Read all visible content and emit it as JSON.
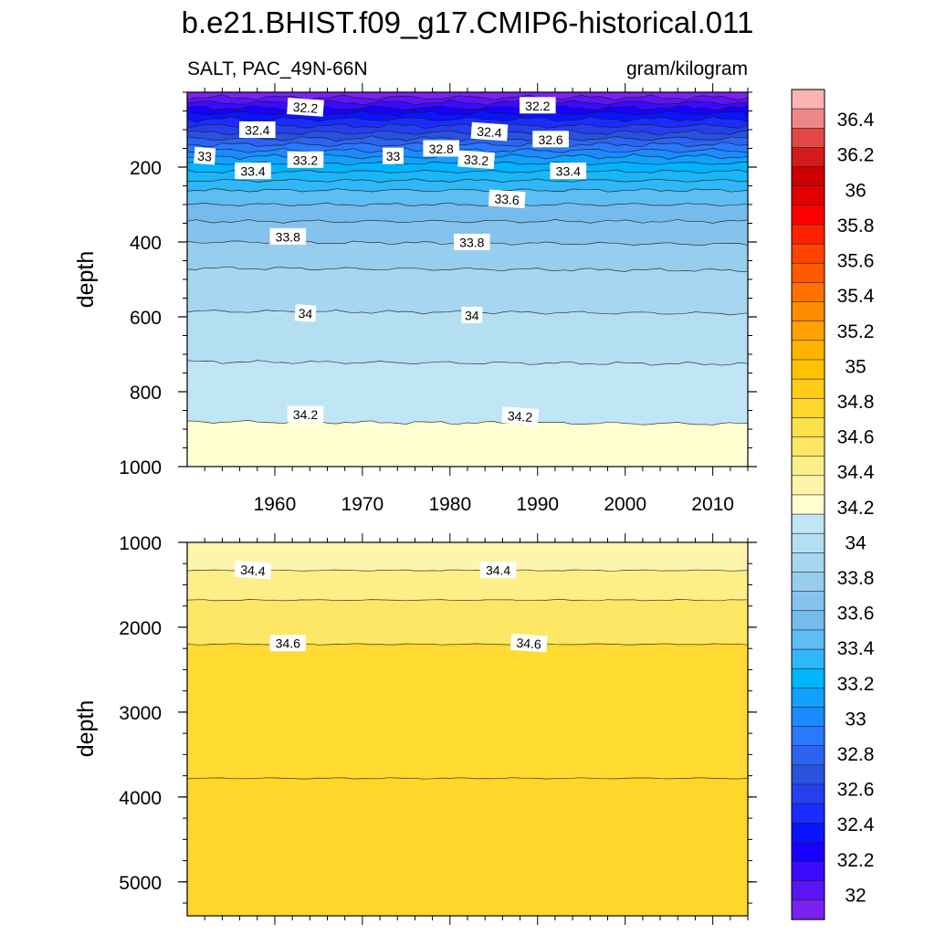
{
  "chart_data": {
    "type": "contour",
    "title": "b.e21.BHIST.f09_g17.CMIP6-historical.011",
    "left_subtitle": "SALT, PAC_49N-66N",
    "right_subtitle": "gram/kilogram",
    "xlim": [
      1950,
      2014
    ],
    "x_ticks": [
      "1960",
      "1970",
      "1980",
      "1990",
      "2000",
      "2010"
    ],
    "panels": [
      {
        "name": "upper",
        "ylabel": "depth",
        "ylim": [
          0,
          1000
        ],
        "y_ticks": [
          "200",
          "400",
          "600",
          "800",
          "1000"
        ],
        "contour_labels": [
          {
            "text": "32.2",
            "year": 1963.5,
            "depth": 40
          },
          {
            "text": "32.2",
            "year": 1990,
            "depth": 35
          },
          {
            "text": "32.4",
            "year": 1958,
            "depth": 100
          },
          {
            "text": "32.4",
            "year": 1984.5,
            "depth": 105
          },
          {
            "text": "32.6",
            "year": 1991.5,
            "depth": 125
          },
          {
            "text": "32.8",
            "year": 1979,
            "depth": 150
          },
          {
            "text": "33",
            "year": 1952,
            "depth": 170
          },
          {
            "text": "33",
            "year": 1973.5,
            "depth": 170
          },
          {
            "text": "33.2",
            "year": 1963.5,
            "depth": 180
          },
          {
            "text": "33.2",
            "year": 1983,
            "depth": 180
          },
          {
            "text": "33.4",
            "year": 1957.5,
            "depth": 210
          },
          {
            "text": "33.4",
            "year": 1993.5,
            "depth": 210
          },
          {
            "text": "33.6",
            "year": 1986.5,
            "depth": 285
          },
          {
            "text": "33.8",
            "year": 1961.5,
            "depth": 385
          },
          {
            "text": "33.8",
            "year": 1982.5,
            "depth": 400
          },
          {
            "text": "34",
            "year": 1963.5,
            "depth": 590
          },
          {
            "text": "34",
            "year": 1982.5,
            "depth": 595
          },
          {
            "text": "34.2",
            "year": 1963.5,
            "depth": 860
          },
          {
            "text": "34.2",
            "year": 1988,
            "depth": 865
          }
        ]
      },
      {
        "name": "lower",
        "ylabel": "depth",
        "ylim": [
          1000,
          5400
        ],
        "y_ticks": [
          "1000",
          "2000",
          "3000",
          "4000",
          "5000"
        ],
        "contour_labels": [
          {
            "text": "34.4",
            "year": 1957.5,
            "depth": 1325
          },
          {
            "text": "34.4",
            "year": 1985.5,
            "depth": 1325
          },
          {
            "text": "34.6",
            "year": 1961.5,
            "depth": 2185
          },
          {
            "text": "34.6",
            "year": 1989,
            "depth": 2185
          }
        ]
      }
    ],
    "colorbar": {
      "labels": [
        "36.4",
        "36.2",
        "36",
        "35.8",
        "35.6",
        "35.4",
        "35.2",
        "35",
        "34.8",
        "34.6",
        "34.4",
        "34.2",
        "34",
        "33.8",
        "33.6",
        "33.4",
        "33.2",
        "33",
        "32.8",
        "32.6",
        "32.4",
        "32.2",
        "32"
      ],
      "colors": [
        "#f9b4b4",
        "#ee8888",
        "#e24848",
        "#d41a1a",
        "#cc0000",
        "#e00000",
        "#ff0000",
        "#ff2200",
        "#ff4400",
        "#ff5a00",
        "#ff7200",
        "#ff8c00",
        "#ffa200",
        "#ffb300",
        "#ffc200",
        "#ffcc1a",
        "#ffd62a",
        "#ffe048",
        "#fde764",
        "#fdef88",
        "#fdf5aa",
        "#ffffd1",
        "#c0e6f6",
        "#b4dff3",
        "#a6d6f0",
        "#97cded",
        "#86c3ec",
        "#74bcee",
        "#5ebdf2",
        "#30b7f8",
        "#00b4ff",
        "#10a1ff",
        "#1a8cff",
        "#2978ff",
        "#2a64f0",
        "#2a52df",
        "#2440ec",
        "#1a2cff",
        "#0a14ff",
        "#1800ff",
        "#3a0aff",
        "#5a14f5",
        "#7a22ee"
      ]
    },
    "fill_colors": {
      "top_violet": "#7b22f0",
      "yellow_light": "#ffffd1",
      "yellow_mid": "#fdf5aa",
      "yellow_upper_lower": "#fdef88",
      "yellow_deep": "#ffda30",
      "yellow_deepest": "#ffd62a"
    }
  }
}
